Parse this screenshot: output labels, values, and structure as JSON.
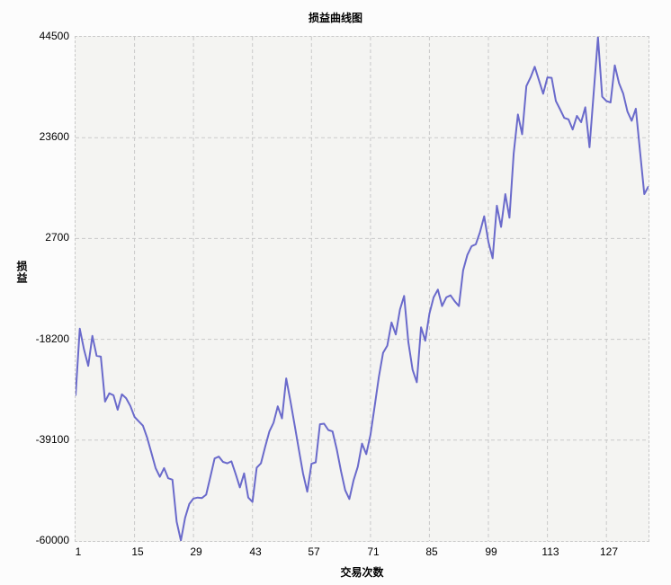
{
  "title": "损益曲线图",
  "colors": {
    "line": "#6a6acb",
    "plot_background": "#f4f4f2",
    "gridline": "#c9c9c9",
    "page_background": "#fcfcfc",
    "text": "#000000"
  },
  "chart_data": {
    "type": "line",
    "title": "损益曲线图",
    "xlabel": "交易次数",
    "ylabel": "损益",
    "x_ticks": [
      1,
      15,
      29,
      43,
      57,
      71,
      85,
      99,
      113,
      127
    ],
    "y_ticks": [
      44500,
      23600,
      2700,
      -18200,
      -39100,
      -60000
    ],
    "xlim": [
      1,
      137
    ],
    "ylim": [
      -60000,
      44500
    ],
    "grid": "dashed-both-axes",
    "legend": "none",
    "series": [
      {
        "name": "损益",
        "color": "#6a6acb",
        "x_start": 1,
        "x_step": 1,
        "values": [
          -29900,
          -16000,
          -20300,
          -23700,
          -17500,
          -21600,
          -21800,
          -31100,
          -29400,
          -29800,
          -32800,
          -29600,
          -30400,
          -32000,
          -34300,
          -35200,
          -36100,
          -38600,
          -41700,
          -44900,
          -46700,
          -44900,
          -47000,
          -47300,
          -56000,
          -59900,
          -55200,
          -52300,
          -51200,
          -51000,
          -51100,
          -50400,
          -46700,
          -42900,
          -42500,
          -43600,
          -43900,
          -43500,
          -46100,
          -48900,
          -46000,
          -51000,
          -51900,
          -44800,
          -43900,
          -40500,
          -37300,
          -35500,
          -32100,
          -34600,
          -26300,
          -31000,
          -36000,
          -41000,
          -46000,
          -49800,
          -44000,
          -43700,
          -35800,
          -35700,
          -37000,
          -37300,
          -41000,
          -45500,
          -49500,
          -51300,
          -47400,
          -44600,
          -39800,
          -42000,
          -38000,
          -32000,
          -26000,
          -21000,
          -19500,
          -14700,
          -17200,
          -12000,
          -9200,
          -18800,
          -24500,
          -27100,
          -15700,
          -18500,
          -12900,
          -9500,
          -7900,
          -11300,
          -9500,
          -9100,
          -10300,
          -11300,
          -3900,
          -700,
          1100,
          1500,
          4000,
          7300,
          2000,
          -1400,
          9500,
          5100,
          11900,
          7000,
          20300,
          28400,
          24300,
          34300,
          36100,
          38300,
          35500,
          32700,
          36100,
          36000,
          31200,
          29500,
          27700,
          27400,
          25300,
          28100,
          26800,
          29900,
          21600,
          33000,
          44400,
          32100,
          31200,
          30900,
          38600,
          34900,
          32700,
          29000,
          27100,
          29600,
          20700,
          11900,
          13500
        ]
      }
    ]
  }
}
